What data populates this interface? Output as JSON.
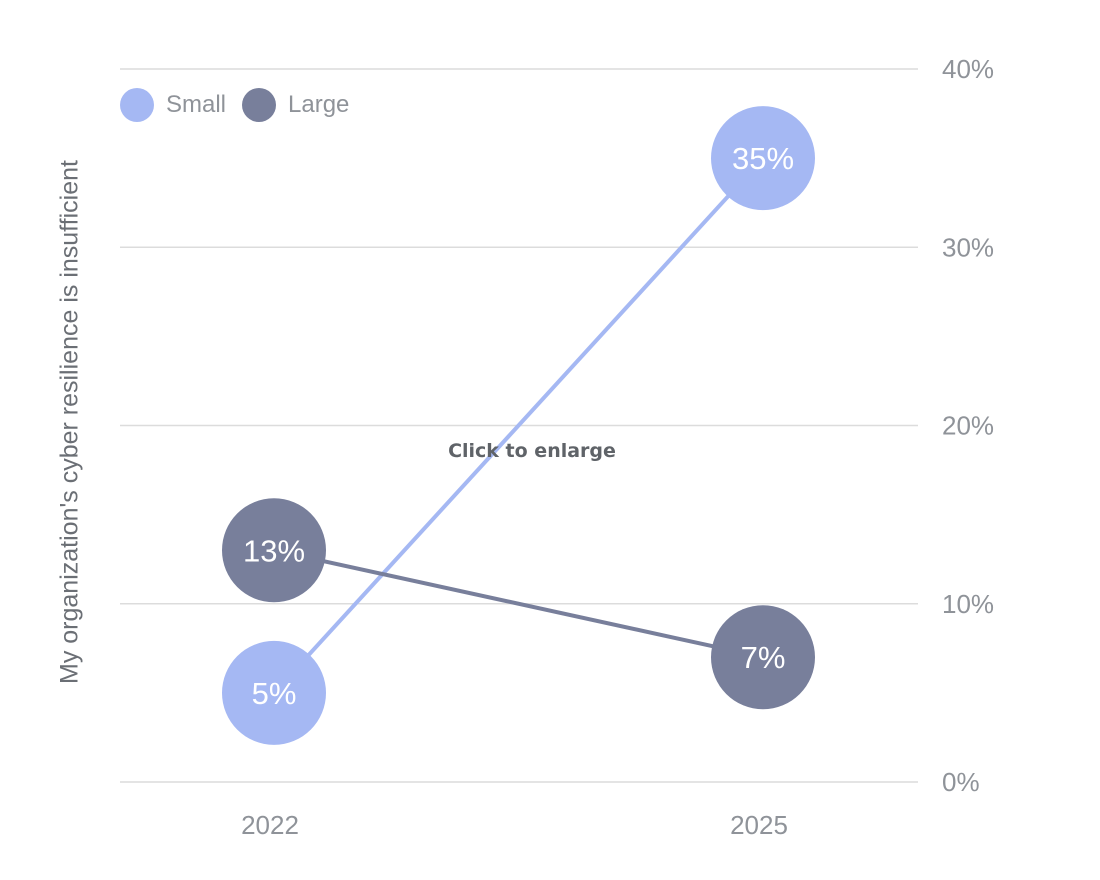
{
  "overlay_text": "Click to enlarge",
  "colors": {
    "small": "#a5b8f3",
    "large": "#787f9b",
    "grid": "#dcdcdc",
    "tick_text": "#8f9399",
    "label_text": "#ffffff"
  },
  "chart_data": {
    "type": "line",
    "title": "",
    "xlabel": "",
    "ylabel": "My organization's cyber resilience is insufficient",
    "categories": [
      "2022",
      "2025"
    ],
    "ylim": [
      0,
      40
    ],
    "y_ticks": [
      0,
      10,
      20,
      30,
      40
    ],
    "y_tick_labels": [
      "0%",
      "10%",
      "20%",
      "30%",
      "40%"
    ],
    "y_axis_position": "right",
    "grid": true,
    "legend_position": "top-left",
    "series": [
      {
        "name": "Small",
        "color": "#a5b8f3",
        "values": [
          5,
          35
        ],
        "labels": [
          "5%",
          "35%"
        ]
      },
      {
        "name": "Large",
        "color": "#787f9b",
        "values": [
          13,
          7
        ],
        "labels": [
          "13%",
          "7%"
        ]
      }
    ]
  }
}
